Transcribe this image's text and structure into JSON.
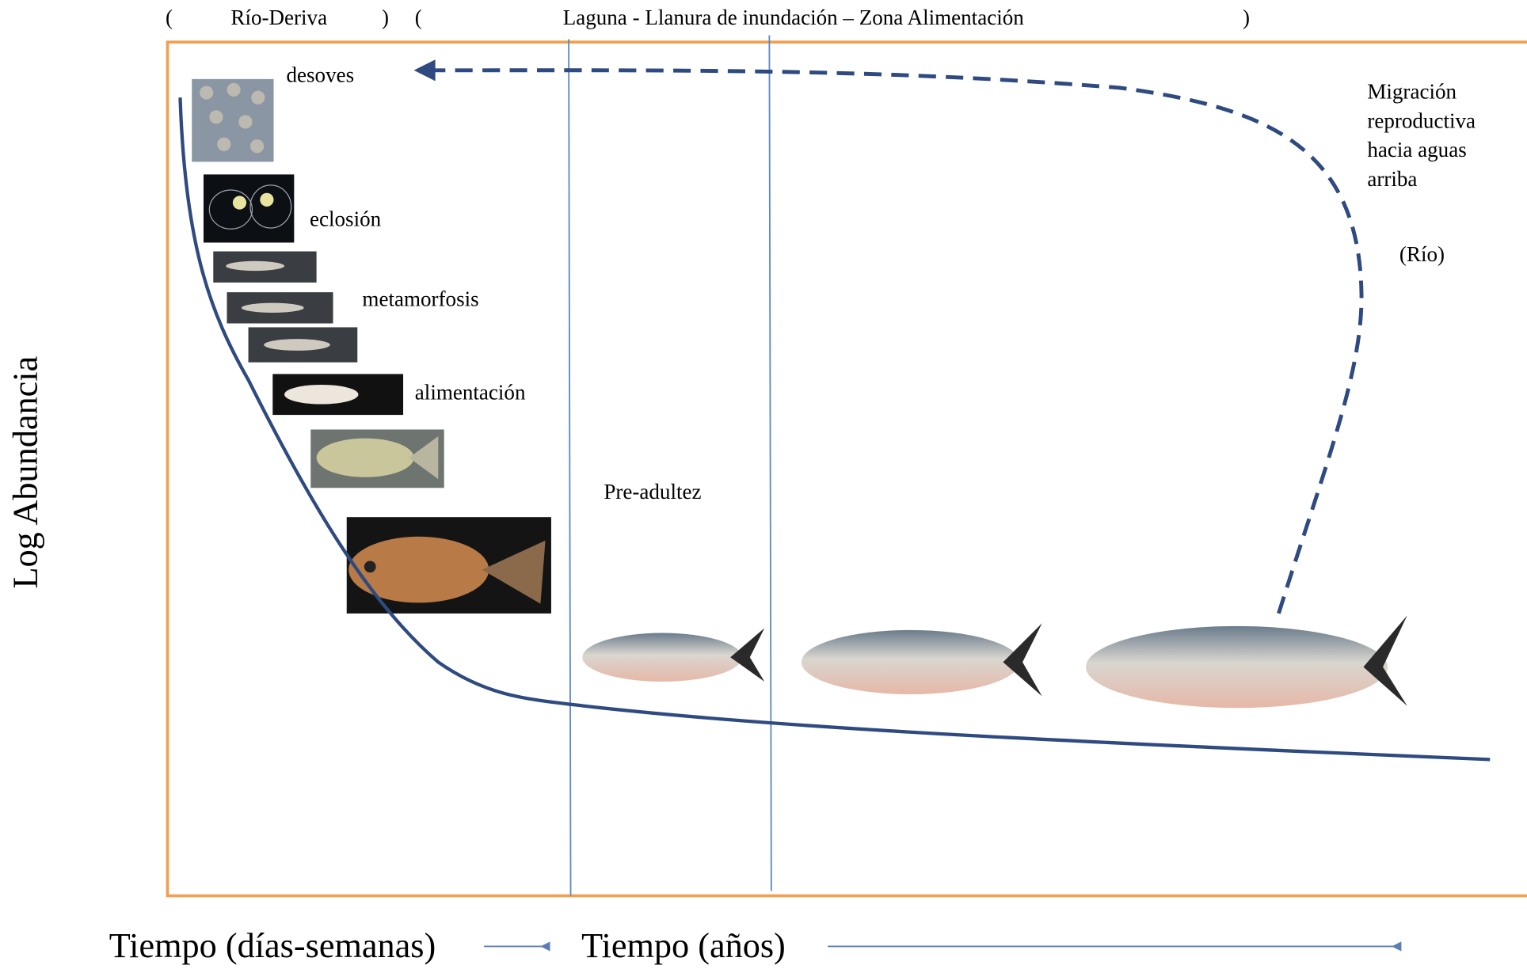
{
  "regions": [
    {
      "open": "(",
      "label": "Río-Deriva",
      "close": ")"
    },
    {
      "open": "(",
      "label": "Laguna - Llanura de inundación – Zona Alimentación",
      "close": ")"
    }
  ],
  "stages": [
    "desoves",
    "eclosión",
    "metamorfosis",
    "alimentación",
    "Pre-adultez"
  ],
  "migration": {
    "lines": [
      "Migración",
      "reproductiva",
      "hacia aguas",
      "arriba"
    ],
    "place": "(Río)"
  },
  "y_axis_label": "Log Abundancia",
  "x_axis_labels": [
    "Tiempo (días-semanas)",
    "Tiempo (años)"
  ]
}
